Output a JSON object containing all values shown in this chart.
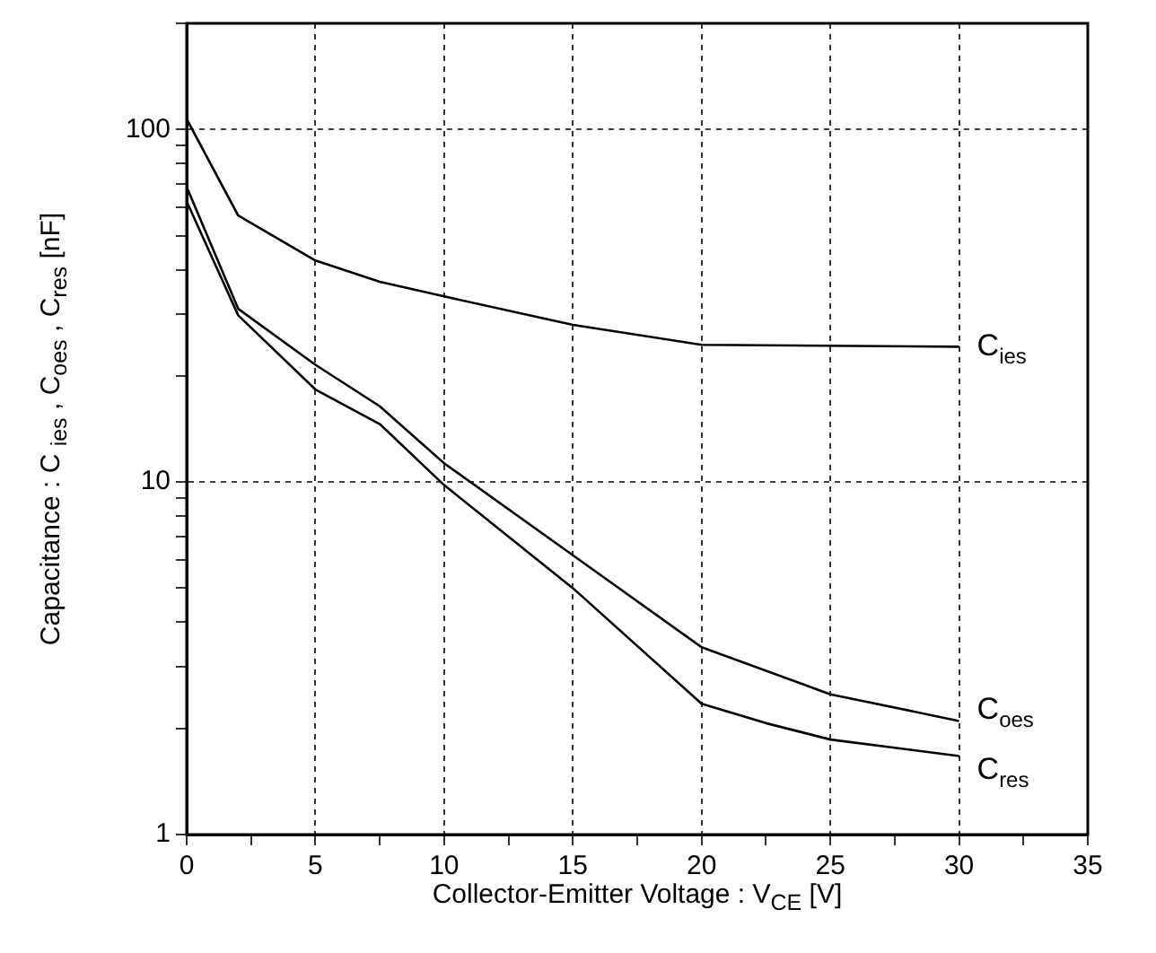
{
  "chart_data": {
    "type": "line",
    "xlabel": "Collector-Emitter Voltage : V$_{CE}$ [V]",
    "ylabel": "Capacitance : C $_{ies}$ , C$_{oes}$ , C$_{res}$ [nF]",
    "log": "y",
    "grid": true,
    "legend": false,
    "marker": "none",
    "line_style": "solid",
    "xlim": [
      0,
      35
    ],
    "xticks": [
      0,
      {
        "value": 2.5,
        "label": null
      },
      5,
      {
        "value": 7.5,
        "label": null
      },
      10,
      {
        "value": 12.5,
        "label": null
      },
      15,
      {
        "value": 17.5,
        "label": null
      },
      20,
      {
        "value": 22.5,
        "label": null
      },
      25,
      {
        "value": 27.5,
        "label": null
      },
      30,
      {
        "value": 32.5,
        "label": null
      },
      35
    ],
    "ylim": [
      1,
      200
    ],
    "yticks": [
      1,
      {
        "value": 2,
        "label": null
      },
      {
        "value": 3,
        "label": null
      },
      {
        "value": 4,
        "label": null
      },
      {
        "value": 5,
        "label": null
      },
      {
        "value": 6,
        "label": null
      },
      {
        "value": 7,
        "label": null
      },
      {
        "value": 8,
        "label": null
      },
      {
        "value": 9,
        "label": null
      },
      10,
      {
        "value": 20,
        "label": null
      },
      {
        "value": 30,
        "label": null
      },
      {
        "value": 40,
        "label": null
      },
      {
        "value": 50,
        "label": null
      },
      {
        "value": 60,
        "label": null
      },
      {
        "value": 70,
        "label": null
      },
      {
        "value": 80,
        "label": null
      },
      {
        "value": 90,
        "label": null
      },
      100,
      {
        "value": 200,
        "label": null
      }
    ],
    "series": [
      {
        "name": "C$_{ies}$",
        "color": "#000000",
        "x": [
          0,
          2,
          5,
          7.5,
          10,
          15,
          20,
          30
        ],
        "values": [
          107,
          57,
          42.5,
          37,
          33.6,
          27.9,
          24.5,
          24.2
        ]
      },
      {
        "name": "C$_{oes}$",
        "color": "#000000",
        "x": [
          0,
          2,
          5,
          7.5,
          10,
          15,
          20,
          25,
          30
        ],
        "values": [
          68.7,
          31,
          21.5,
          16.4,
          11.3,
          6.2,
          3.4,
          2.5,
          2.1
        ]
      },
      {
        "name": "C$_{res}$",
        "color": "#000000",
        "x": [
          0,
          2,
          5,
          7.5,
          10,
          15,
          20,
          22.5,
          25,
          30
        ],
        "values": [
          62.5,
          29.7,
          18.3,
          14.6,
          9.8,
          5,
          2.35,
          2.07,
          1.86,
          1.67
        ]
      }
    ]
  }
}
